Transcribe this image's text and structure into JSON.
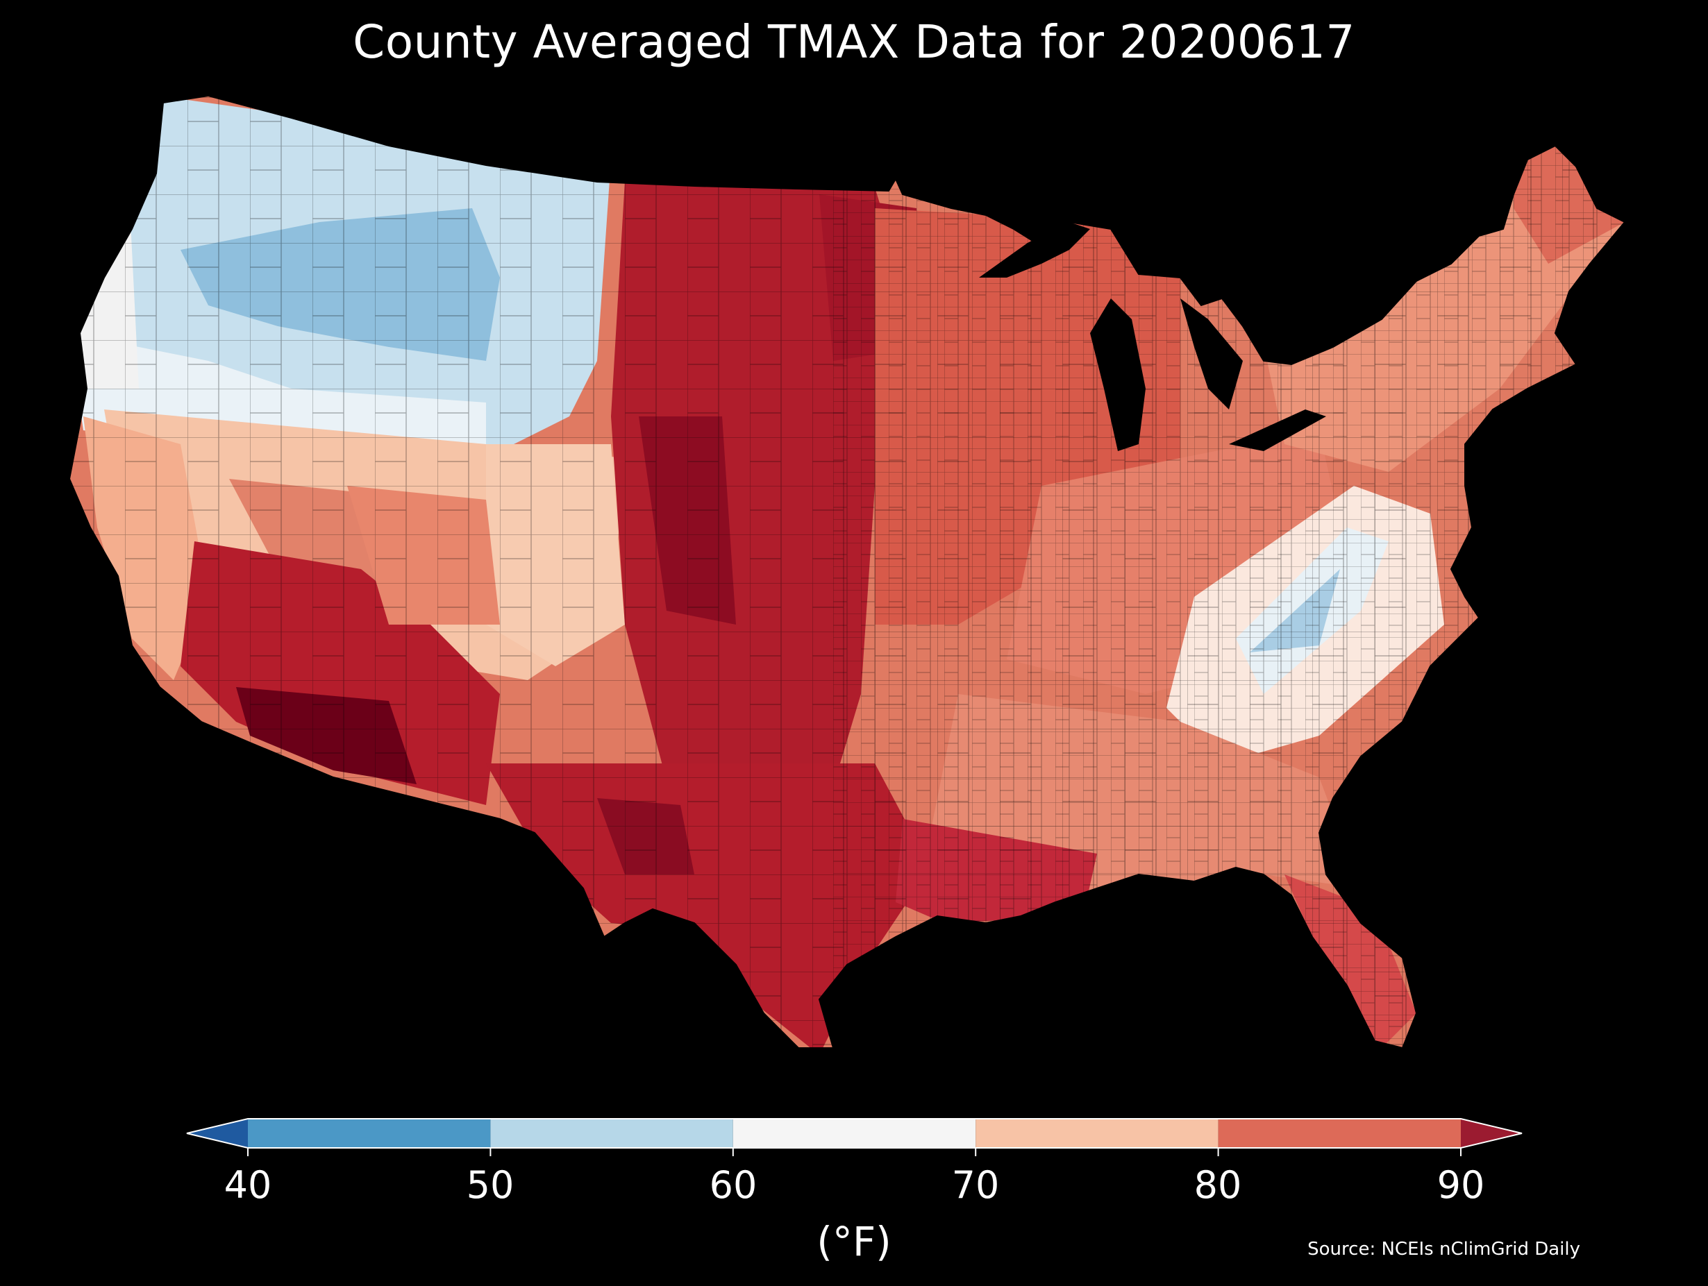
{
  "title": "County Averaged TMAX Data for 20200617",
  "colorbar": {
    "ticks": [
      "40",
      "50",
      "60",
      "70",
      "80",
      "90"
    ],
    "unit": "(°F)",
    "bins": [
      {
        "from": 30,
        "to": 40,
        "color": "#1f5aa0"
      },
      {
        "from": 40,
        "to": 50,
        "color": "#4b98c6"
      },
      {
        "from": 50,
        "to": 60,
        "color": "#b6d7e8"
      },
      {
        "from": 60,
        "to": 70,
        "color": "#f5f5f5"
      },
      {
        "from": 70,
        "to": 80,
        "color": "#f7c3a6"
      },
      {
        "from": 80,
        "to": 90,
        "color": "#dd6a58"
      },
      {
        "from": 90,
        "to": 100,
        "color": "#9b1b30"
      }
    ],
    "extend": "both"
  },
  "map": {
    "region": "Contiguous United States, county level",
    "variable": "TMAX",
    "regions": [
      {
        "name": "Pacific Northwest coast",
        "tmax_range": "60-70"
      },
      {
        "name": "Northern Rockies interior",
        "tmax_range": "50-60"
      },
      {
        "name": "Central California / Great Basin",
        "tmax_range": "70-90"
      },
      {
        "name": "Desert Southwest",
        "tmax_range": ">90"
      },
      {
        "name": "Great Plains",
        "tmax_range": ">90"
      },
      {
        "name": "Texas",
        "tmax_range": ">90"
      },
      {
        "name": "Midwest",
        "tmax_range": "80-90"
      },
      {
        "name": "Northeast",
        "tmax_range": "70-80"
      },
      {
        "name": "Southern Appalachians",
        "tmax_range": "50-70"
      },
      {
        "name": "Southeast / Florida",
        "tmax_range": "80-90"
      }
    ]
  },
  "source": "Source: NCEIs nClimGrid Daily"
}
